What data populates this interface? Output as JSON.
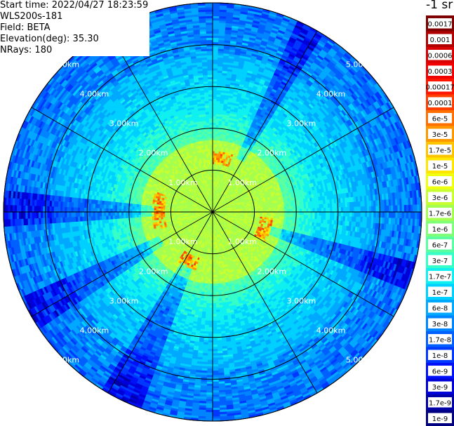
{
  "header": {
    "start_time": "Start time: 2022/04/27 18:23:59",
    "device": "WLS200s-181",
    "field": "Field: BETA",
    "elevation": "Elevation(deg): 35.30",
    "nrays": "NRays: 180"
  },
  "units_label": "-1 sr",
  "range_rings": [
    "1.00km",
    "2.00km",
    "3.00km",
    "4.00km",
    "5.00km"
  ],
  "colorbar": [
    {
      "label": "0.0017",
      "color": "#800000"
    },
    {
      "label": "0.001",
      "color": "#b00000"
    },
    {
      "label": "0.0006",
      "color": "#d80000"
    },
    {
      "label": "0.0003",
      "color": "#f00000"
    },
    {
      "label": "0.00017",
      "color": "#ff1500"
    },
    {
      "label": "0.0001",
      "color": "#ff4000"
    },
    {
      "label": "6e-5",
      "color": "#ff7000"
    },
    {
      "label": "3e-5",
      "color": "#ff9800"
    },
    {
      "label": "1.7e-5",
      "color": "#ffc400"
    },
    {
      "label": "1e-5",
      "color": "#ffe600"
    },
    {
      "label": "6e-6",
      "color": "#f0ff10"
    },
    {
      "label": "3e-6",
      "color": "#c8ff30"
    },
    {
      "label": "1.7e-6",
      "color": "#a4ff50"
    },
    {
      "label": "1e-6",
      "color": "#80ff78"
    },
    {
      "label": "6e-7",
      "color": "#5cffa0"
    },
    {
      "label": "3e-7",
      "color": "#36ffc8"
    },
    {
      "label": "1.7e-7",
      "color": "#10f0f0"
    },
    {
      "label": "1e-7",
      "color": "#00d0ff"
    },
    {
      "label": "6e-8",
      "color": "#00a8ff"
    },
    {
      "label": "3e-8",
      "color": "#0084ff"
    },
    {
      "label": "1.7e-8",
      "color": "#0060ff"
    },
    {
      "label": "1e-8",
      "color": "#0038ff"
    },
    {
      "label": "6e-9",
      "color": "#0010f8"
    },
    {
      "label": "3e-9",
      "color": "#0000d8"
    },
    {
      "label": "1.7e-9",
      "color": "#0000a8"
    },
    {
      "label": "1e-9",
      "color": "#000080"
    }
  ]
}
